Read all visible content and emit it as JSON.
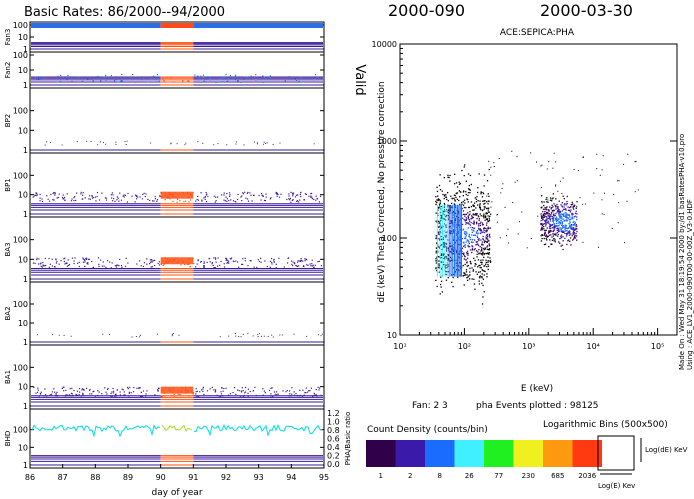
{
  "titles": {
    "left": "Basic Rates: 86/2000--94/2000",
    "date_doy": "2000-090",
    "date_cal": "2000-03-30",
    "right": "ACE:SEPICA:PHA"
  },
  "side_text": {
    "valid": "Valid",
    "made_on": "Made On : Wed May 31 18:19:54 2000   by:/d1 basRatesPHA-v10.pro",
    "using": "Using : ACE_LV1_2000-090T00-00-00Z_V3-0.HDF"
  },
  "colors": {
    "normal": "#3a1a9a",
    "highlight": "#ff5010",
    "fan3_band": "#2a6fe8",
    "fan3_band_hl": "#ff4a1a",
    "bhd_trace": "#00e0e0",
    "bhd_trace_hl": "#a0e020",
    "frame": "#000000"
  },
  "chart_data": [
    {
      "type": "line",
      "title": "Basic Rates: 86/2000--94/2000",
      "xlabel": "day of year",
      "x_ticks": [
        "86",
        "87",
        "88",
        "89",
        "90",
        "91",
        "92",
        "93",
        "94",
        "95"
      ],
      "xlim": [
        86,
        95
      ],
      "highlight_range": [
        90,
        91
      ],
      "panels": [
        {
          "name": "Fan3",
          "yscale": "log",
          "ylim": [
            1,
            100
          ],
          "y_ticks": [
            "1",
            "10",
            "100"
          ],
          "level": 100
        },
        {
          "name": "Fan2",
          "yscale": "log",
          "ylim": [
            1,
            100
          ],
          "y_ticks": [
            "1",
            "10",
            "100"
          ],
          "level": 3
        },
        {
          "name": "BP2",
          "yscale": "log",
          "ylim": [
            1,
            1000
          ],
          "y_ticks": [
            "1",
            "10",
            "100"
          ],
          "level": 1
        },
        {
          "name": "BP1",
          "yscale": "log",
          "ylim": [
            1,
            1000
          ],
          "y_ticks": [
            "1",
            "10",
            "100"
          ],
          "level": 10
        },
        {
          "name": "BA3",
          "yscale": "log",
          "ylim": [
            1,
            1000
          ],
          "y_ticks": [
            "1",
            "10",
            "100"
          ],
          "level": 9
        },
        {
          "name": "BA2",
          "yscale": "log",
          "ylim": [
            1,
            1000
          ],
          "y_ticks": [
            "1",
            "10",
            "100"
          ],
          "level": 1
        },
        {
          "name": "BA1",
          "yscale": "log",
          "ylim": [
            1,
            1000
          ],
          "y_ticks": [
            "1",
            "10",
            "100"
          ],
          "level": 7
        },
        {
          "name": "BHD",
          "yscale": "log",
          "ylim": [
            1,
            1000
          ],
          "y_ticks": [
            "1",
            "10",
            "100"
          ],
          "level": 120,
          "right_ylabel": "PHA/Basic ratio",
          "right_ticks": [
            "0.0",
            "0.2",
            "0.4",
            "0.6",
            "0.8",
            "1.0",
            "1.2"
          ]
        }
      ]
    },
    {
      "type": "scatter",
      "title": "ACE:SEPICA:PHA",
      "xlabel": "E (keV)",
      "ylabel": "dE (keV) Theta Corrected, No pressure correction",
      "xscale": "log",
      "yscale": "log",
      "xlim": [
        10,
        200000
      ],
      "ylim": [
        10,
        10000
      ],
      "x_ticks": [
        "10¹",
        "10²",
        "10³",
        "10⁴",
        "10⁵"
      ],
      "y_ticks": [
        "10",
        "100",
        "1000",
        "10000"
      ],
      "clusters": [
        {
          "x_range": [
            35,
            250
          ],
          "y_range": [
            20,
            400
          ],
          "center": [
            100,
            110
          ]
        },
        {
          "x_range": [
            1500,
            5500
          ],
          "y_range": [
            80,
            250
          ],
          "center": [
            3500,
            150
          ]
        }
      ],
      "fan_text": "Fan:  2 3",
      "events_text": "pha Events plotted : 98125"
    },
    {
      "type": "heatmap",
      "title": "Count Density (counts/bin)",
      "bin_text": "Logarithmic Bins (500x500)",
      "labels": [
        "1",
        "2",
        "8",
        "26",
        "77",
        "230",
        "685",
        "2036"
      ],
      "colors": [
        "#30004a",
        "#3a1aa8",
        "#1a6cff",
        "#40f0ff",
        "#20f020",
        "#f0f020",
        "#ff9a10",
        "#ff3a10"
      ],
      "legend_y": "Log(dE) KeV",
      "legend_x": "Log(E) Kev"
    }
  ]
}
